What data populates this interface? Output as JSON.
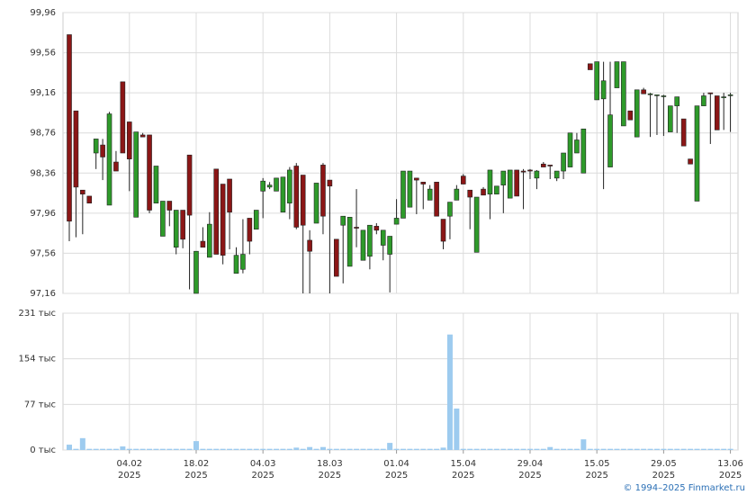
{
  "chart_data": {
    "type": "candlestick",
    "categories": [
      "22.01.2025",
      "23.01.2025",
      "24.01.2025",
      "27.01.2025",
      "28.01.2025",
      "29.01.2025",
      "30.01.2025",
      "31.01.2025",
      "03.02.2025",
      "04.02.2025",
      "05.02.2025",
      "06.02.2025",
      "07.02.2025",
      "10.02.2025",
      "11.02.2025",
      "12.02.2025",
      "13.02.2025",
      "14.02.2025",
      "17.02.2025",
      "18.02.2025",
      "19.02.2025",
      "20.02.2025",
      "21.02.2025",
      "24.02.2025",
      "25.02.2025",
      "26.02.2025",
      "27.02.2025",
      "28.02.2025",
      "03.03.2025",
      "04.03.2025",
      "05.03.2025",
      "06.03.2025",
      "07.03.2025",
      "10.03.2025",
      "11.03.2025",
      "12.03.2025",
      "13.03.2025",
      "14.03.2025",
      "17.03.2025",
      "18.03.2025",
      "19.03.2025",
      "20.03.2025",
      "21.03.2025",
      "24.03.2025",
      "25.03.2025",
      "26.03.2025",
      "27.03.2025",
      "28.03.2025",
      "31.03.2025",
      "01.04.2025",
      "02.04.2025",
      "03.04.2025",
      "04.04.2025",
      "07.04.2025",
      "08.04.2025",
      "09.04.2025",
      "10.04.2025",
      "11.04.2025",
      "14.04.2025",
      "15.04.2025",
      "16.04.2025",
      "17.04.2025",
      "18.04.2025",
      "21.04.2025",
      "22.04.2025",
      "23.04.2025",
      "24.04.2025",
      "25.04.2025",
      "28.04.2025",
      "29.04.2025",
      "30.04.2025",
      "02.05.2025",
      "05.05.2025",
      "06.05.2025",
      "07.05.2025",
      "08.05.2025",
      "12.05.2025",
      "13.05.2025",
      "14.05.2025",
      "15.05.2025",
      "16.05.2025",
      "19.05.2025",
      "20.05.2025",
      "21.05.2025",
      "22.05.2025",
      "23.05.2025",
      "26.05.2025",
      "27.05.2025",
      "28.05.2025",
      "29.05.2025",
      "30.05.2025",
      "02.06.2025",
      "03.06.2025",
      "04.06.2025",
      "05.06.2025",
      "06.06.2025",
      "09.06.2025",
      "10.06.2025",
      "11.06.2025",
      "13.06.2025"
    ],
    "open": [
      99.74,
      98.98,
      98.19,
      98.13,
      98.56,
      98.64,
      98.04,
      98.47,
      99.27,
      98.87,
      97.92,
      98.74,
      98.74,
      98.06,
      97.73,
      98.08,
      97.62,
      97.99,
      98.54,
      97.16,
      97.68,
      97.52,
      98.4,
      98.25,
      98.3,
      97.36,
      97.4,
      97.91,
      97.8,
      98.18,
      98.22,
      98.18,
      97.97,
      98.06,
      98.43,
      98.34,
      97.69,
      97.86,
      98.44,
      98.29,
      97.7,
      97.84,
      97.43,
      97.82,
      97.49,
      97.53,
      97.83,
      97.64,
      97.55,
      97.85,
      97.91,
      98.02,
      98.31,
      98.27,
      98.09,
      98.27,
      97.9,
      97.93,
      98.09,
      98.33,
      98.19,
      97.57,
      98.2,
      98.15,
      98.15,
      98.24,
      98.11,
      98.39,
      98.38,
      98.39,
      98.31,
      98.45,
      98.44,
      98.31,
      98.38,
      98.42,
      98.56,
      98.36,
      99.45,
      99.09,
      99.1,
      98.42,
      99.21,
      98.83,
      98.98,
      98.72,
      99.19,
      99.15,
      99.14,
      99.13,
      98.77,
      99.03,
      98.9,
      98.5,
      98.08,
      99.03,
      99.16,
      99.13,
      99.12,
      99.14
    ],
    "high": [
      99.74,
      98.98,
      98.19,
      98.13,
      98.7,
      98.7,
      98.97,
      98.58,
      99.27,
      98.87,
      98.77,
      98.76,
      98.74,
      98.43,
      98.08,
      98.08,
      97.99,
      97.99,
      98.54,
      97.58,
      97.82,
      97.97,
      98.4,
      98.25,
      98.3,
      97.62,
      97.9,
      97.91,
      97.99,
      98.31,
      98.27,
      98.31,
      98.32,
      98.42,
      98.46,
      98.34,
      97.79,
      98.26,
      98.46,
      98.29,
      97.7,
      97.93,
      97.92,
      98.2,
      97.79,
      97.84,
      97.86,
      97.79,
      97.73,
      98.1,
      98.38,
      98.38,
      98.31,
      98.27,
      98.24,
      98.27,
      97.9,
      98.07,
      98.24,
      98.35,
      98.19,
      98.12,
      98.22,
      98.39,
      98.23,
      98.38,
      98.39,
      98.39,
      98.4,
      98.4,
      98.39,
      98.47,
      98.44,
      98.38,
      98.56,
      98.76,
      98.76,
      98.8,
      99.45,
      99.47,
      99.47,
      99.47,
      99.47,
      99.47,
      98.98,
      99.19,
      99.21,
      99.16,
      99.14,
      99.14,
      99.03,
      99.12,
      98.9,
      98.5,
      99.03,
      99.16,
      99.16,
      99.13,
      99.16,
      99.16
    ],
    "low": [
      97.68,
      97.72,
      97.75,
      98.06,
      98.4,
      98.29,
      98.04,
      98.38,
      98.56,
      98.18,
      97.92,
      98.72,
      97.96,
      98.06,
      97.73,
      97.83,
      97.55,
      97.61,
      97.2,
      97.16,
      97.62,
      97.52,
      97.55,
      97.45,
      97.6,
      97.36,
      97.36,
      97.55,
      97.8,
      97.91,
      98.2,
      98.18,
      97.97,
      97.9,
      97.8,
      97.16,
      97.16,
      97.86,
      97.75,
      97.16,
      97.33,
      97.26,
      97.43,
      97.62,
      97.49,
      97.4,
      97.75,
      97.49,
      97.17,
      97.85,
      97.91,
      98.02,
      97.95,
      98.0,
      98.09,
      97.93,
      97.6,
      97.7,
      98.09,
      98.25,
      97.8,
      97.57,
      98.14,
      97.9,
      98.15,
      97.96,
      98.11,
      98.13,
      98.0,
      98.3,
      98.2,
      98.42,
      98.3,
      98.28,
      98.3,
      98.42,
      98.56,
      98.36,
      99.39,
      99.09,
      98.2,
      98.42,
      99.21,
      98.83,
      98.89,
      98.72,
      99.15,
      98.72,
      98.74,
      98.73,
      98.77,
      98.76,
      98.63,
      98.45,
      98.08,
      99.03,
      98.65,
      98.79,
      98.79,
      98.77
    ],
    "close": [
      97.88,
      98.22,
      98.15,
      98.06,
      98.7,
      98.52,
      98.95,
      98.38,
      98.56,
      98.5,
      98.77,
      98.72,
      97.99,
      98.43,
      98.08,
      97.99,
      97.99,
      97.7,
      97.94,
      97.58,
      97.62,
      97.85,
      97.55,
      97.54,
      97.97,
      97.54,
      97.55,
      97.68,
      97.99,
      98.28,
      98.24,
      98.31,
      98.32,
      98.39,
      97.82,
      97.84,
      97.58,
      98.26,
      97.93,
      98.23,
      97.33,
      97.93,
      97.92,
      97.81,
      97.79,
      97.84,
      97.79,
      97.79,
      97.73,
      97.91,
      98.38,
      98.38,
      98.29,
      98.25,
      98.2,
      97.93,
      97.68,
      98.07,
      98.2,
      98.25,
      98.12,
      98.12,
      98.14,
      98.39,
      98.23,
      98.38,
      98.39,
      98.13,
      98.37,
      98.38,
      98.38,
      98.42,
      98.43,
      98.38,
      98.56,
      98.76,
      98.69,
      98.8,
      99.39,
      99.47,
      99.28,
      98.94,
      99.47,
      99.47,
      98.89,
      99.19,
      99.15,
      99.15,
      99.14,
      99.13,
      99.03,
      99.12,
      98.63,
      98.45,
      99.03,
      99.13,
      99.15,
      98.79,
      99.12,
      99.14
    ],
    "up_color": "#2e9a2a",
    "down_color": "#8b1616",
    "ylim": [
      97.16,
      99.96
    ],
    "yticks": [
      {
        "value": 97.16,
        "label": "97,16"
      },
      {
        "value": 97.56,
        "label": "97,56"
      },
      {
        "value": 97.96,
        "label": "97,96"
      },
      {
        "value": 98.36,
        "label": "98,36"
      },
      {
        "value": 98.76,
        "label": "98,76"
      },
      {
        "value": 99.16,
        "label": "99,16"
      },
      {
        "value": 99.56,
        "label": "99,56"
      },
      {
        "value": 99.96,
        "label": "99,96"
      }
    ],
    "xticks": [
      {
        "value": "04.02.2025",
        "label": "04.02",
        "sublabel": "2025"
      },
      {
        "value": "18.02.2025",
        "label": "18.02",
        "sublabel": "2025"
      },
      {
        "value": "04.03.2025",
        "label": "04.03",
        "sublabel": "2025"
      },
      {
        "value": "18.03.2025",
        "label": "18.03",
        "sublabel": "2025"
      },
      {
        "value": "01.04.2025",
        "label": "01.04",
        "sublabel": "2025"
      },
      {
        "value": "15.04.2025",
        "label": "15.04",
        "sublabel": "2025"
      },
      {
        "value": "29.04.2025",
        "label": "29.04",
        "sublabel": "2025"
      },
      {
        "value": "15.05.2025",
        "label": "15.05",
        "sublabel": "2025"
      },
      {
        "value": "29.05.2025",
        "label": "29.05",
        "sublabel": "2025"
      },
      {
        "value": "13.06.2025",
        "label": "13.06",
        "sublabel": "2025"
      }
    ],
    "grid": true,
    "volume": {
      "color": "#9dcbef",
      "ylim": [
        0,
        231
      ],
      "yticks": [
        {
          "value": 0,
          "label": "0 тыс"
        },
        {
          "value": 77,
          "label": "77 тыс"
        },
        {
          "value": 154,
          "label": "154 тыс"
        },
        {
          "value": 231,
          "label": "231 тыс"
        }
      ],
      "values": [
        9,
        2,
        20,
        2,
        2,
        2,
        2,
        2,
        6,
        2,
        2,
        2,
        2,
        2,
        2,
        2,
        2,
        2,
        2,
        15,
        2,
        2,
        2,
        2,
        2,
        2,
        2,
        2,
        2,
        2,
        2,
        2,
        2,
        2,
        4,
        2,
        5,
        2,
        5,
        2,
        2,
        2,
        2,
        2,
        2,
        2,
        2,
        2,
        12,
        2,
        2,
        2,
        2,
        2,
        2,
        2,
        4,
        195,
        70,
        2,
        2,
        2,
        2,
        2,
        2,
        2,
        2,
        2,
        2,
        2,
        2,
        2,
        5,
        2,
        2,
        2,
        2,
        18,
        2,
        2,
        2,
        2,
        2,
        2,
        2,
        2,
        2,
        2,
        2,
        2,
        2,
        2,
        2,
        2,
        2,
        2,
        2,
        2,
        2,
        2
      ]
    },
    "copyright": "© 1994–2025 Finmarket.ru"
  }
}
